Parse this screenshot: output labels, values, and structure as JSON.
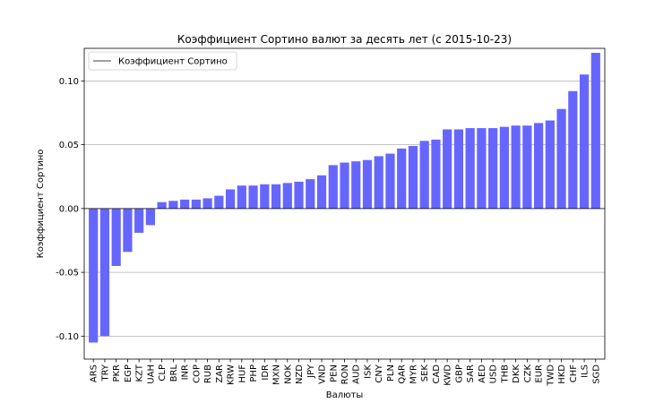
{
  "chart_data": {
    "type": "bar",
    "title": "Коэффициент Сортино валют за десять лет (с 2015-10-23)",
    "xlabel": "Валюты",
    "ylabel": "Коэффициент Сортино",
    "ylim": [
      -0.118,
      0.1255
    ],
    "yticks": [
      -0.1,
      -0.05,
      0.0,
      0.05,
      0.1
    ],
    "ytick_labels": [
      "-0.10",
      "-0.05",
      "0.00",
      "0.05",
      "0.10"
    ],
    "grid": "horizontal",
    "legend_position": "top-left",
    "legend": [
      "Коэффициент Сортино"
    ],
    "bar_color": "#6666ff",
    "categories": [
      "ARS",
      "TRY",
      "PKR",
      "EGP",
      "KZT",
      "UAH",
      "CLP",
      "BRL",
      "INR",
      "COP",
      "RUB",
      "ZAR",
      "KRW",
      "HUF",
      "PHP",
      "IDR",
      "MXN",
      "NOK",
      "NZD",
      "JPY",
      "VND",
      "PEN",
      "RON",
      "AUD",
      "ISK",
      "CNY",
      "PLN",
      "QAR",
      "MYR",
      "SEK",
      "CAD",
      "KWD",
      "GBP",
      "SAR",
      "AED",
      "USD",
      "THB",
      "DKK",
      "CZK",
      "EUR",
      "TWD",
      "HKD",
      "CHF",
      "ILS",
      "SGD"
    ],
    "values": [
      -0.105,
      -0.1,
      -0.045,
      -0.034,
      -0.019,
      -0.013,
      0.005,
      0.006,
      0.007,
      0.007,
      0.008,
      0.01,
      0.015,
      0.018,
      0.018,
      0.019,
      0.019,
      0.02,
      0.021,
      0.023,
      0.026,
      0.034,
      0.036,
      0.037,
      0.038,
      0.041,
      0.043,
      0.047,
      0.049,
      0.053,
      0.054,
      0.062,
      0.062,
      0.063,
      0.063,
      0.063,
      0.064,
      0.065,
      0.065,
      0.067,
      0.069,
      0.078,
      0.092,
      0.105,
      0.122
    ]
  }
}
